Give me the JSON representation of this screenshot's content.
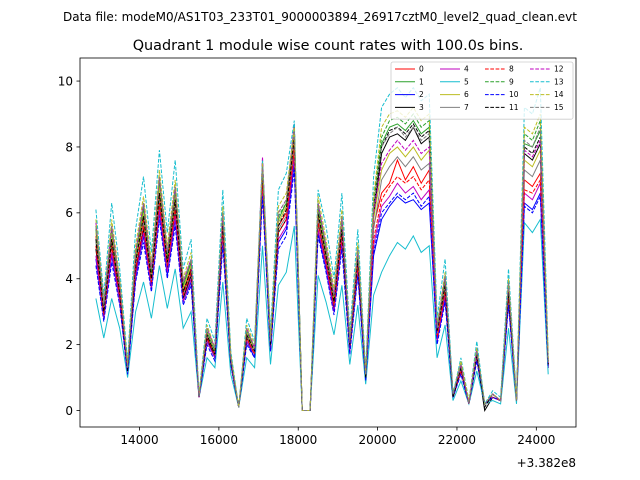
{
  "chart_data": {
    "type": "line",
    "suptitle": "Data file: modeM0/AS1T03_233T01_9000003894_26917cztM0_level2_quad_clean.evt",
    "title": "Quadrant 1 module wise count rates with 100.0s bins.",
    "xlabel": "",
    "ylabel": "",
    "x_offset_label": "+3.382e8",
    "xlim": [
      12500,
      25000
    ],
    "ylim": [
      -0.5,
      10.7
    ],
    "xticks": [
      14000,
      16000,
      18000,
      20000,
      22000,
      24000
    ],
    "yticks": [
      0,
      2,
      4,
      6,
      8,
      10
    ],
    "legend_location": "upper right",
    "legend_columns": 4,
    "x": [
      12900,
      13100,
      13300,
      13500,
      13700,
      13900,
      14100,
      14300,
      14500,
      14700,
      14900,
      15100,
      15300,
      15500,
      15700,
      15900,
      16100,
      16300,
      16500,
      16700,
      16900,
      17100,
      17300,
      17500,
      17700,
      17900,
      18100,
      18300,
      18500,
      18700,
      18900,
      19100,
      19300,
      19500,
      19700,
      19900,
      20100,
      20300,
      20500,
      20700,
      20900,
      21100,
      21300,
      21500,
      21700,
      21900,
      22100,
      22300,
      22500,
      22700,
      22900,
      23100,
      23300,
      23500,
      23700,
      23900,
      24100,
      24300
    ],
    "series": [
      {
        "name": "0",
        "color": "#ff0000",
        "dash": "solid",
        "values": [
          5.3,
          3.1,
          5.2,
          3.6,
          1.2,
          4.5,
          5.8,
          4.0,
          6.6,
          4.5,
          6.3,
          3.6,
          4.3,
          0.4,
          2.3,
          1.7,
          5.6,
          1.5,
          0.1,
          2.3,
          1.8,
          7.2,
          2.0,
          5.6,
          6.0,
          8.2,
          0.0,
          0.0,
          5.9,
          4.7,
          3.3,
          5.5,
          2.0,
          4.6,
          1.0,
          5.6,
          6.6,
          6.9,
          7.6,
          7.0,
          7.4,
          6.9,
          7.3,
          2.3,
          3.8,
          0.5,
          1.3,
          0.2,
          1.7,
          0.2,
          0.5,
          0.3,
          3.6,
          0.3,
          7.0,
          6.8,
          7.2,
          1.4
        ]
      },
      {
        "name": "1",
        "color": "#2ca02c",
        "dash": "solid",
        "values": [
          5.6,
          3.2,
          5.4,
          3.7,
          1.3,
          4.7,
          6.1,
          4.2,
          6.9,
          4.7,
          6.6,
          3.8,
          4.5,
          0.4,
          2.4,
          1.8,
          5.9,
          1.6,
          0.1,
          2.4,
          1.9,
          7.5,
          2.1,
          5.8,
          6.3,
          8.6,
          0.0,
          0.0,
          6.2,
          4.9,
          3.5,
          5.7,
          2.1,
          4.8,
          1.1,
          6.2,
          8.1,
          8.6,
          8.7,
          8.5,
          8.8,
          8.4,
          8.6,
          2.5,
          4.0,
          0.5,
          1.4,
          0.2,
          1.8,
          0.2,
          0.5,
          0.3,
          3.8,
          0.3,
          8.1,
          8.0,
          8.5,
          1.5
        ]
      },
      {
        "name": "2",
        "color": "#0000ff",
        "dash": "solid",
        "values": [
          4.6,
          2.8,
          4.7,
          3.3,
          1.1,
          4.0,
          5.3,
          3.7,
          6.0,
          4.1,
          5.8,
          3.3,
          3.9,
          0.4,
          2.1,
          1.6,
          5.2,
          1.4,
          0.1,
          2.1,
          1.6,
          6.7,
          1.8,
          5.1,
          5.5,
          7.5,
          0.0,
          0.0,
          5.4,
          4.3,
          3.0,
          5.1,
          1.8,
          4.2,
          0.9,
          4.7,
          5.8,
          6.2,
          6.5,
          6.3,
          6.4,
          6.1,
          6.3,
          2.1,
          3.4,
          0.4,
          1.2,
          0.2,
          1.6,
          0.2,
          0.4,
          0.3,
          3.3,
          0.3,
          6.3,
          6.1,
          6.6,
          1.3
        ]
      },
      {
        "name": "3",
        "color": "#000000",
        "dash": "solid",
        "values": [
          4.9,
          2.9,
          5.0,
          3.4,
          1.2,
          4.2,
          5.5,
          3.8,
          6.3,
          4.3,
          6.0,
          3.4,
          4.1,
          0.4,
          2.2,
          1.6,
          5.4,
          1.4,
          0.1,
          2.2,
          1.7,
          7.0,
          1.9,
          5.4,
          5.8,
          7.9,
          0.0,
          0.0,
          5.7,
          4.5,
          3.1,
          5.3,
          1.9,
          4.4,
          1.0,
          5.9,
          7.8,
          8.3,
          8.4,
          8.2,
          8.6,
          8.1,
          8.3,
          2.2,
          3.6,
          0.4,
          1.2,
          0.2,
          1.6,
          0.0,
          0.4,
          0.3,
          3.4,
          0.3,
          7.8,
          7.6,
          8.1,
          1.3
        ]
      },
      {
        "name": "4",
        "color": "#bf00bf",
        "dash": "solid",
        "values": [
          4.7,
          2.8,
          4.8,
          3.3,
          1.1,
          4.1,
          5.4,
          3.7,
          6.1,
          4.2,
          5.9,
          3.3,
          4.0,
          0.4,
          2.1,
          1.6,
          5.3,
          1.4,
          0.1,
          2.1,
          1.7,
          6.8,
          1.8,
          5.2,
          5.6,
          7.7,
          0.0,
          0.0,
          5.5,
          4.4,
          3.0,
          5.2,
          1.8,
          4.3,
          0.9,
          5.0,
          6.2,
          6.5,
          6.9,
          6.6,
          6.8,
          6.4,
          6.7,
          2.1,
          3.5,
          0.4,
          1.2,
          0.2,
          1.6,
          0.2,
          0.4,
          0.3,
          3.3,
          0.3,
          6.6,
          6.4,
          6.9,
          1.3
        ]
      },
      {
        "name": "5",
        "color": "#17becf",
        "dash": "solid",
        "values": [
          3.4,
          2.2,
          3.4,
          2.5,
          1.0,
          3.0,
          3.9,
          2.8,
          4.4,
          3.1,
          4.3,
          2.5,
          3.0,
          0.4,
          1.6,
          1.3,
          3.9,
          1.1,
          0.1,
          1.6,
          1.3,
          5.0,
          1.4,
          3.8,
          4.2,
          5.6,
          0.0,
          0.0,
          4.1,
          3.3,
          2.3,
          3.8,
          1.4,
          3.2,
          0.8,
          3.5,
          4.2,
          4.7,
          5.1,
          4.9,
          5.3,
          4.8,
          5.0,
          1.6,
          2.6,
          0.3,
          0.9,
          0.2,
          1.2,
          0.2,
          0.3,
          0.2,
          2.5,
          0.2,
          5.7,
          5.4,
          5.8,
          1.1
        ]
      },
      {
        "name": "6",
        "color": "#bcbd22",
        "dash": "solid",
        "values": [
          5.4,
          3.1,
          5.4,
          3.7,
          1.3,
          4.6,
          6.0,
          4.1,
          6.8,
          4.6,
          6.5,
          3.7,
          4.4,
          0.4,
          2.4,
          1.8,
          5.8,
          1.5,
          0.1,
          2.4,
          1.8,
          7.4,
          2.0,
          5.7,
          6.2,
          8.4,
          0.0,
          0.0,
          6.0,
          4.8,
          3.4,
          5.6,
          2.0,
          4.7,
          1.0,
          5.8,
          7.3,
          7.8,
          8.0,
          7.7,
          8.0,
          7.6,
          7.9,
          2.4,
          3.9,
          0.5,
          1.3,
          0.2,
          1.8,
          0.2,
          0.5,
          0.3,
          3.7,
          0.3,
          7.6,
          7.4,
          7.9,
          1.5
        ]
      },
      {
        "name": "7",
        "color": "#808080",
        "dash": "solid",
        "values": [
          5.1,
          3.0,
          5.1,
          3.5,
          1.2,
          4.4,
          5.7,
          3.9,
          6.4,
          4.4,
          6.2,
          3.5,
          4.2,
          0.4,
          2.3,
          1.7,
          5.5,
          1.5,
          0.1,
          2.3,
          1.7,
          7.1,
          1.9,
          5.5,
          5.9,
          8.0,
          0.0,
          0.0,
          5.8,
          4.6,
          3.2,
          5.4,
          1.9,
          4.5,
          1.0,
          5.5,
          7.0,
          7.4,
          7.7,
          7.4,
          7.7,
          7.3,
          7.5,
          2.3,
          3.7,
          0.4,
          1.3,
          0.2,
          1.7,
          0.2,
          0.5,
          0.3,
          3.5,
          0.3,
          7.3,
          7.1,
          7.6,
          1.4
        ]
      },
      {
        "name": "8",
        "color": "#ff0000",
        "dash": "dashed",
        "values": [
          5.0,
          2.9,
          5.0,
          3.5,
          1.2,
          4.3,
          5.6,
          3.9,
          6.3,
          4.4,
          6.1,
          3.5,
          4.2,
          0.4,
          2.2,
          1.7,
          5.5,
          1.5,
          0.1,
          2.2,
          1.7,
          7.0,
          1.9,
          5.4,
          5.8,
          7.9,
          0.0,
          0.0,
          5.7,
          4.5,
          3.2,
          5.3,
          1.9,
          4.4,
          1.0,
          5.2,
          6.4,
          6.8,
          7.1,
          6.9,
          7.1,
          6.7,
          7.0,
          2.2,
          3.6,
          0.4,
          1.2,
          0.2,
          1.7,
          0.2,
          0.4,
          0.3,
          3.4,
          0.3,
          6.7,
          6.6,
          7.0,
          1.4
        ]
      },
      {
        "name": "9",
        "color": "#2ca02c",
        "dash": "dashed",
        "values": [
          5.5,
          3.2,
          5.5,
          3.8,
          1.3,
          4.7,
          6.2,
          4.2,
          7.0,
          4.7,
          6.7,
          3.8,
          4.5,
          0.4,
          2.4,
          1.8,
          5.9,
          1.6,
          0.1,
          2.4,
          1.9,
          7.6,
          2.1,
          5.9,
          6.3,
          8.6,
          0.0,
          0.0,
          6.2,
          4.9,
          3.5,
          5.8,
          2.1,
          4.8,
          1.1,
          6.4,
          8.3,
          8.8,
          8.9,
          8.7,
          9.0,
          8.6,
          8.8,
          2.5,
          4.0,
          0.5,
          1.4,
          0.2,
          1.8,
          0.2,
          0.5,
          0.3,
          3.8,
          0.3,
          8.4,
          8.2,
          8.8,
          1.5
        ]
      },
      {
        "name": "10",
        "color": "#0000ff",
        "dash": "dashed",
        "values": [
          4.4,
          2.7,
          4.5,
          3.2,
          1.1,
          3.9,
          5.1,
          3.6,
          5.8,
          4.0,
          5.6,
          3.2,
          3.8,
          0.4,
          2.0,
          1.5,
          5.0,
          1.4,
          0.1,
          2.0,
          1.6,
          6.5,
          1.8,
          4.9,
          5.3,
          7.3,
          0.0,
          0.0,
          5.3,
          4.2,
          2.9,
          4.9,
          1.7,
          4.1,
          0.9,
          4.8,
          6.0,
          6.3,
          6.6,
          6.4,
          6.6,
          6.2,
          6.5,
          2.0,
          3.3,
          0.4,
          1.1,
          0.2,
          1.5,
          0.2,
          0.4,
          0.3,
          3.2,
          0.3,
          6.2,
          6.0,
          6.5,
          1.3
        ]
      },
      {
        "name": "11",
        "color": "#000000",
        "dash": "dashed",
        "values": [
          5.2,
          3.0,
          5.2,
          3.6,
          1.2,
          4.5,
          5.9,
          4.0,
          6.6,
          4.5,
          6.4,
          3.6,
          4.3,
          0.4,
          2.3,
          1.7,
          5.7,
          1.5,
          0.1,
          2.3,
          1.8,
          7.3,
          2.0,
          5.6,
          6.1,
          8.3,
          0.0,
          0.0,
          6.0,
          4.7,
          3.3,
          5.5,
          2.0,
          4.6,
          1.0,
          6.1,
          8.0,
          8.5,
          8.6,
          8.4,
          8.7,
          8.3,
          8.5,
          2.4,
          3.8,
          0.4,
          1.3,
          0.2,
          1.7,
          0.1,
          0.5,
          0.3,
          3.6,
          0.3,
          8.0,
          7.8,
          8.3,
          1.4
        ]
      },
      {
        "name": "12",
        "color": "#bf00bf",
        "dash": "dashed",
        "values": [
          5.7,
          3.3,
          5.6,
          3.8,
          1.3,
          4.8,
          6.3,
          4.3,
          7.1,
          4.8,
          6.8,
          3.9,
          4.6,
          0.4,
          2.5,
          1.9,
          6.0,
          1.6,
          0.1,
          2.5,
          1.9,
          7.7,
          2.1,
          6.0,
          6.4,
          8.7,
          0.0,
          0.0,
          6.3,
          5.0,
          3.5,
          5.9,
          2.1,
          4.9,
          1.1,
          6.0,
          7.5,
          7.9,
          8.2,
          7.9,
          8.2,
          7.8,
          8.0,
          2.5,
          4.1,
          0.5,
          1.4,
          0.2,
          1.9,
          0.2,
          0.5,
          0.3,
          3.9,
          0.3,
          7.9,
          7.7,
          8.2,
          1.5
        ]
      },
      {
        "name": "13",
        "color": "#17becf",
        "dash": "dashed",
        "values": [
          6.1,
          3.5,
          6.3,
          4.3,
          1.5,
          5.5,
          7.1,
          4.8,
          7.9,
          5.4,
          7.6,
          4.3,
          5.2,
          0.5,
          2.8,
          2.1,
          6.7,
          1.8,
          0.1,
          2.8,
          2.1,
          7.6,
          2.4,
          6.7,
          7.2,
          8.8,
          0.0,
          0.0,
          6.7,
          5.6,
          4.0,
          6.6,
          2.4,
          5.5,
          1.2,
          7.1,
          9.2,
          9.6,
          9.8,
          9.5,
          9.8,
          9.4,
          9.6,
          2.8,
          4.6,
          0.5,
          1.6,
          0.3,
          2.1,
          0.2,
          0.6,
          0.4,
          4.3,
          0.4,
          9.2,
          9.0,
          9.8,
          1.7
        ]
      },
      {
        "name": "14",
        "color": "#bcbd22",
        "dash": "dashed",
        "values": [
          5.8,
          3.3,
          5.8,
          4.0,
          1.4,
          5.0,
          6.5,
          4.5,
          7.3,
          5.0,
          7.0,
          4.0,
          4.8,
          0.5,
          2.6,
          1.9,
          6.2,
          1.7,
          0.1,
          2.6,
          2.0,
          7.5,
          2.2,
          6.2,
          6.6,
          8.6,
          0.0,
          0.0,
          6.5,
          5.2,
          3.7,
          6.1,
          2.2,
          5.1,
          1.1,
          6.5,
          8.6,
          9.0,
          9.1,
          8.9,
          9.2,
          8.8,
          9.0,
          2.6,
          4.2,
          0.5,
          1.5,
          0.3,
          1.9,
          0.2,
          0.5,
          0.3,
          4.0,
          0.3,
          8.6,
          8.4,
          9.0,
          1.6
        ]
      },
      {
        "name": "15",
        "color": "#808080",
        "dash": "dashed",
        "values": [
          5.6,
          3.2,
          5.6,
          3.9,
          1.3,
          4.8,
          6.3,
          4.3,
          7.1,
          4.8,
          6.8,
          3.9,
          4.6,
          0.4,
          2.5,
          1.9,
          6.0,
          1.6,
          0.1,
          2.5,
          1.9,
          7.4,
          2.1,
          6.0,
          6.4,
          8.5,
          0.0,
          0.0,
          6.3,
          5.0,
          3.5,
          5.9,
          2.1,
          4.9,
          1.1,
          6.2,
          8.0,
          8.4,
          8.6,
          8.3,
          8.6,
          8.2,
          8.4,
          2.5,
          4.1,
          0.5,
          1.4,
          0.2,
          1.8,
          0.2,
          0.5,
          0.3,
          3.9,
          0.3,
          8.2,
          8.0,
          8.6,
          1.5
        ]
      }
    ]
  }
}
